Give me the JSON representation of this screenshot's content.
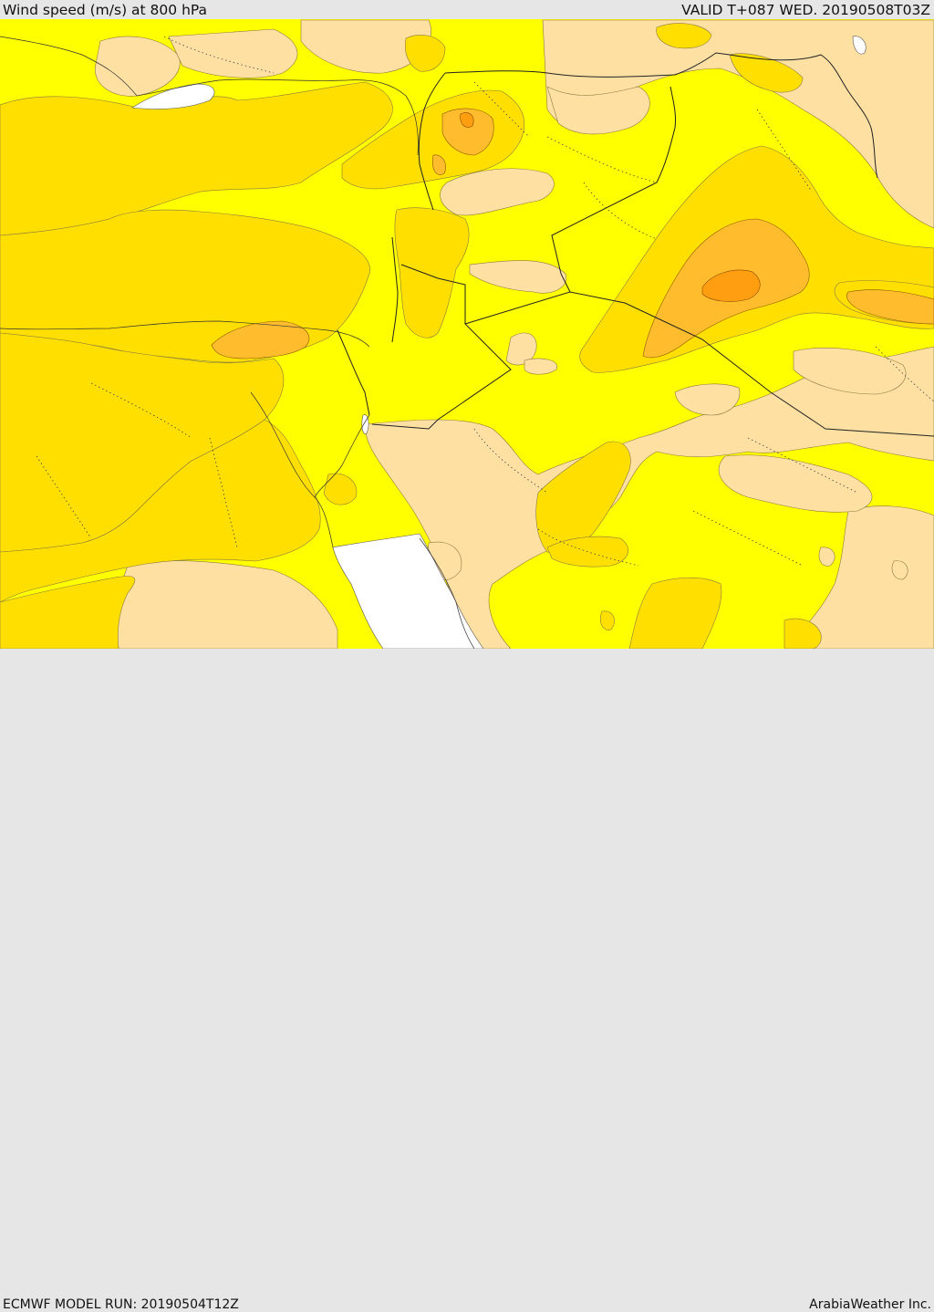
{
  "header": {
    "title": "Wind speed (m/s) at 800 hPa",
    "valid": "VALID T+087 WED. 20190508T03Z"
  },
  "footer": {
    "model_run": "ECMWF MODEL RUN: 20190504T12Z",
    "brand": "ArabiaWeather Inc."
  },
  "colors": {
    "bg": "#ffff00",
    "light": "#fee0a3",
    "mid": "#ffdf00",
    "strong": "#ffbc2c",
    "strongest": "#ff9e10",
    "missing": "#ffffff",
    "border": "#222222"
  }
}
